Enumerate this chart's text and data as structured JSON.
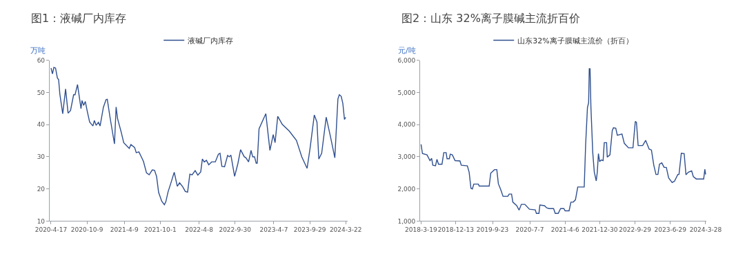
{
  "chart_data": [
    {
      "type": "line",
      "title": "图1：液碱厂内库存",
      "ylabel": "万吨",
      "legend": "top",
      "grid": false,
      "x": [
        "2020-04-17",
        "2020-04-24",
        "2020-05-01",
        "2020-05-09",
        "2020-05-18",
        "2020-05-24",
        "2020-05-30",
        "2020-06-13",
        "2020-06-27",
        "2020-07-09",
        "2020-07-21",
        "2020-08-05",
        "2020-08-12",
        "2020-08-24",
        "2020-09-10",
        "2020-09-15",
        "2020-09-23",
        "2020-10-01",
        "2020-10-10",
        "2020-10-22",
        "2020-11-07",
        "2020-11-14",
        "2020-11-23",
        "2020-12-04",
        "2020-12-12",
        "2020-12-28",
        "2021-01-10",
        "2021-01-16",
        "2021-01-29",
        "2021-02-20",
        "2021-02-28",
        "2021-03-07",
        "2021-03-25",
        "2021-04-06",
        "2021-05-03",
        "2021-05-11",
        "2021-05-29",
        "2021-06-06",
        "2021-06-19",
        "2021-06-29",
        "2021-07-11",
        "2021-07-26",
        "2021-08-08",
        "2021-08-23",
        "2021-09-03",
        "2021-09-13",
        "2021-09-23",
        "2021-10-08",
        "2021-10-21",
        "2021-10-28",
        "2021-11-08",
        "2021-11-23",
        "2021-12-08",
        "2021-12-23",
        "2022-01-03",
        "2022-01-18",
        "2022-01-31",
        "2022-02-11",
        "2022-02-22",
        "2022-03-05",
        "2022-03-20",
        "2022-04-02",
        "2022-04-16",
        "2022-04-24",
        "2022-05-03",
        "2022-05-14",
        "2022-05-25",
        "2022-06-08",
        "2022-06-26",
        "2022-07-11",
        "2022-07-19",
        "2022-07-28",
        "2022-08-10",
        "2022-08-25",
        "2022-09-02",
        "2022-09-10",
        "2022-09-28",
        "2022-10-14",
        "2022-10-27",
        "2022-11-14",
        "2022-11-22",
        "2022-12-05",
        "2022-12-17",
        "2022-12-25",
        "2023-01-03",
        "2023-01-11",
        "2023-01-16",
        "2023-01-25",
        "2023-02-27",
        "2023-03-19",
        "2023-04-04",
        "2023-04-13",
        "2023-04-26",
        "2023-05-18",
        "2023-06-21",
        "2023-07-26",
        "2023-08-21",
        "2023-09-16",
        "2023-10-01",
        "2023-10-21",
        "2023-11-03",
        "2023-11-12",
        "2023-11-26",
        "2023-12-18",
        "2024-01-07",
        "2024-01-29",
        "2024-02-13",
        "2024-02-20",
        "2024-02-29",
        "2024-03-08",
        "2024-03-16",
        "2024-03-22"
      ],
      "series": [
        {
          "name": "液碱厂内库存",
          "color": "#2f4f8f",
          "values": [
            57.6,
            55.8,
            57.8,
            57.6,
            54.5,
            54,
            49.5,
            43.4,
            51.1,
            43.6,
            44.4,
            49.3,
            49.3,
            52.5,
            45,
            47.5,
            46,
            47.2,
            44.3,
            40.8,
            39.6,
            41.3,
            39.8,
            40.7,
            39.6,
            45.4,
            47.8,
            47.9,
            42.4,
            34,
            45.5,
            41.9,
            37.6,
            34.4,
            32.6,
            33.8,
            32.9,
            31.3,
            31.5,
            30.2,
            28.6,
            25,
            24.4,
            25.9,
            25.8,
            23.9,
            18.9,
            16.2,
            15.1,
            16,
            19.1,
            22.1,
            25.2,
            20.8,
            21.9,
            20.7,
            19.2,
            19,
            24.6,
            24.4,
            25.7,
            24.3,
            25.3,
            29.3,
            28.4,
            28.9,
            27.5,
            28.4,
            28.4,
            30.8,
            31.1,
            27,
            26.9,
            30.4,
            30,
            30.5,
            23.9,
            27.9,
            32.2,
            30,
            29.7,
            28.4,
            32,
            30,
            30,
            28,
            28,
            38.7,
            43.4,
            32,
            36.9,
            34.4,
            42.6,
            40.1,
            38,
            35.1,
            30,
            26.4,
            32.9,
            43,
            40.8,
            29.3,
            31.1,
            42.3,
            36.5,
            29.7,
            48,
            49.3,
            48.8,
            46.6,
            41.6,
            42.3
          ]
        }
      ],
      "xlim": [
        "2020-04-10",
        "2024-03-30"
      ],
      "xticks": [
        {
          "value": "2020-04-17",
          "label": "2020-4-17"
        },
        {
          "value": "2020-10-09",
          "label": "2020-10-9"
        },
        {
          "value": "2021-04-09",
          "label": "2021-4-9"
        },
        {
          "value": "2021-10-01",
          "label": "2021-10-1"
        },
        {
          "value": "2022-04-08",
          "label": "2022-4-8"
        },
        {
          "value": "2022-09-30",
          "label": "2022-9-30"
        },
        {
          "value": "2023-04-07",
          "label": "2023-4-7"
        },
        {
          "value": "2023-09-29",
          "label": "2023-9-29"
        },
        {
          "value": "2024-03-22",
          "label": "2024-3-22"
        }
      ],
      "ylim": [
        10,
        60
      ],
      "yticks": [
        10,
        20,
        30,
        40,
        50,
        60
      ]
    },
    {
      "type": "line",
      "title": "图2：山东 32%离子膜碱主流折百价",
      "ylabel": "元/吨",
      "legend": "top",
      "grid": false,
      "x": [
        "2018-03-19",
        "2018-03-30",
        "2018-05-04",
        "2018-05-27",
        "2018-06-09",
        "2018-06-18",
        "2018-07-09",
        "2018-07-20",
        "2018-08-01",
        "2018-08-28",
        "2018-09-11",
        "2018-09-29",
        "2018-10-06",
        "2018-10-24",
        "2018-10-31",
        "2018-11-16",
        "2018-12-07",
        "2019-01-14",
        "2019-01-24",
        "2019-03-12",
        "2019-03-26",
        "2019-04-09",
        "2019-04-20",
        "2019-05-01",
        "2019-06-05",
        "2019-06-12",
        "2019-08-28",
        "2019-09-09",
        "2019-10-08",
        "2019-10-26",
        "2019-11-07",
        "2019-11-25",
        "2019-12-13",
        "2020-01-19",
        "2020-01-30",
        "2020-02-17",
        "2020-02-27",
        "2020-03-28",
        "2020-04-15",
        "2020-05-03",
        "2020-05-30",
        "2020-07-04",
        "2020-08-18",
        "2020-08-27",
        "2020-09-16",
        "2020-09-23",
        "2020-10-28",
        "2020-11-15",
        "2020-12-03",
        "2021-01-07",
        "2021-01-20",
        "2021-02-12",
        "2021-03-02",
        "2021-03-28",
        "2021-04-06",
        "2021-05-07",
        "2021-05-21",
        "2021-06-08",
        "2021-06-25",
        "2021-07-13",
        "2021-09-01",
        "2021-09-12",
        "2021-09-26",
        "2021-10-05",
        "2021-10-10",
        "2021-10-16",
        "2021-10-23",
        "2021-11-06",
        "2021-11-18",
        "2021-12-03",
        "2021-12-11",
        "2021-12-20",
        "2021-12-29",
        "2022-01-11",
        "2022-01-25",
        "2022-02-03",
        "2022-02-21",
        "2022-02-26",
        "2022-03-19",
        "2022-04-06",
        "2022-04-15",
        "2022-05-03",
        "2022-05-15",
        "2022-06-20",
        "2022-07-08",
        "2022-08-09",
        "2022-09-13",
        "2022-10-01",
        "2022-10-10",
        "2022-10-23",
        "2022-11-27",
        "2022-12-20",
        "2023-01-16",
        "2023-02-03",
        "2023-02-21",
        "2023-03-10",
        "2023-03-25",
        "2023-04-06",
        "2023-04-24",
        "2023-05-12",
        "2023-05-29",
        "2023-06-16",
        "2023-07-13",
        "2023-07-31",
        "2023-08-26",
        "2023-09-04",
        "2023-09-22",
        "2023-10-14",
        "2023-10-28",
        "2023-11-15",
        "2023-12-11",
        "2023-12-24",
        "2024-01-16",
        "2024-03-13",
        "2024-03-22",
        "2024-03-28"
      ],
      "series": [
        {
          "name": "山东32%离子膜碱主流价（折百）",
          "color": "#2f4f8f",
          "values": [
            3385,
            3100,
            3060,
            2880,
            2950,
            2740,
            2720,
            2920,
            2770,
            2770,
            3130,
            3130,
            2940,
            2940,
            3080,
            3060,
            2880,
            2870,
            2740,
            2720,
            2520,
            2020,
            2000,
            2150,
            2150,
            2090,
            2090,
            2490,
            2600,
            2600,
            2160,
            1980,
            1770,
            1770,
            1840,
            1840,
            1590,
            1480,
            1340,
            1520,
            1520,
            1370,
            1350,
            1240,
            1240,
            1500,
            1480,
            1410,
            1390,
            1390,
            1240,
            1240,
            1390,
            1390,
            1320,
            1320,
            1590,
            1590,
            1660,
            2060,
            2060,
            3385,
            4530,
            4680,
            5740,
            5740,
            4530,
            3130,
            2520,
            2250,
            2520,
            3100,
            2850,
            2900,
            2880,
            3440,
            3440,
            2990,
            3060,
            3820,
            3900,
            3890,
            3670,
            3710,
            3420,
            3280,
            3280,
            4100,
            4070,
            3350,
            3350,
            3510,
            3240,
            3210,
            2740,
            2450,
            2450,
            2770,
            2810,
            2670,
            2670,
            2340,
            2200,
            2240,
            2450,
            2450,
            3110,
            3100,
            2440,
            2520,
            2560,
            2380,
            2310,
            2310,
            2610,
            2450
          ]
        }
      ],
      "xlim": [
        "2018-03-12",
        "2024-04-05"
      ],
      "xticks": [
        {
          "value": "2018-03-19",
          "label": "2018-3-19"
        },
        {
          "value": "2018-12-13",
          "label": "2018-12-13"
        },
        {
          "value": "2019-09-23",
          "label": "2019-9-23"
        },
        {
          "value": "2020-07-07",
          "label": "2020-7-7"
        },
        {
          "value": "2021-04-06",
          "label": "2021-4-6"
        },
        {
          "value": "2021-12-30",
          "label": "2021-12-30"
        },
        {
          "value": "2022-09-29",
          "label": "2022-9-29"
        },
        {
          "value": "2023-06-29",
          "label": "2023-6-29"
        },
        {
          "value": "2024-03-28",
          "label": "2024-3-28"
        }
      ],
      "ylim": [
        1000,
        6000
      ],
      "yticks": [
        {
          "value": 1000,
          "label": "1,000"
        },
        {
          "value": 2000,
          "label": "2,000"
        },
        {
          "value": 3000,
          "label": "3,000"
        },
        {
          "value": 4000,
          "label": "4,000"
        },
        {
          "value": 5000,
          "label": "5,000"
        },
        {
          "value": 6000,
          "label": "6,000"
        }
      ]
    }
  ]
}
